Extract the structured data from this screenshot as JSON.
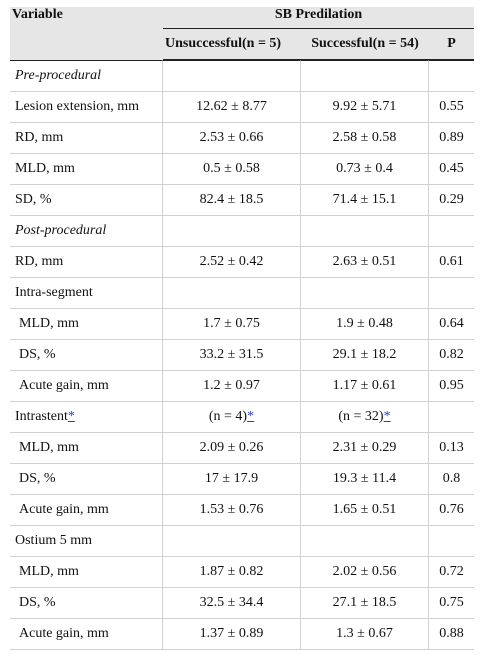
{
  "header": {
    "variable": "Variable",
    "group": "SB Predilation",
    "col1": "Unsuccessful(n = 5)",
    "col2": "Successful(n = 54)",
    "col3": "P"
  },
  "rows": [
    {
      "label": "Pre-procedural",
      "section": true
    },
    {
      "label": "Lesion extension, mm",
      "v1": "12.62 ± 8.77",
      "v2": "9.92 ± 5.71",
      "p": "0.55"
    },
    {
      "label": "RD, mm",
      "v1": "2.53 ± 0.66",
      "v2": "2.58 ± 0.58",
      "p": "0.89"
    },
    {
      "label": "MLD, mm",
      "v1": "0.5 ± 0.58",
      "v2": "0.73 ± 0.4",
      "p": "0.45"
    },
    {
      "label": "SD, %",
      "v1": "82.4 ± 18.5",
      "v2": "71.4 ± 15.1",
      "p": "0.29"
    },
    {
      "label": "Post-procedural",
      "section": true
    },
    {
      "label": "RD, mm",
      "v1": "2.52 ± 0.42",
      "v2": "2.63 ± 0.51",
      "p": "0.61"
    },
    {
      "label": "Intra-segment"
    },
    {
      "label": "MLD, mm",
      "v1": "1.7 ± 0.75",
      "v2": "1.9 ± 0.48",
      "p": "0.64",
      "indent": true
    },
    {
      "label": "DS, %",
      "v1": "33.2 ± 31.5",
      "v2": "29.1 ± 18.2",
      "p": "0.82",
      "indent": true
    },
    {
      "label": "Acute gain, mm",
      "v1": "1.2 ± 0.97",
      "v2": "1.17 ± 0.61",
      "p": "0.95",
      "indent": true
    },
    {
      "label": "Intrastent",
      "labelStar": "*",
      "v1": "(n = 4)",
      "v1Star": "*",
      "v2": "(n = 32)",
      "v2Star": "*"
    },
    {
      "label": "MLD, mm",
      "v1": "2.09 ± 0.26",
      "v2": "2.31 ± 0.29",
      "p": "0.13",
      "indent": true
    },
    {
      "label": "DS, %",
      "v1": "17 ± 17.9",
      "v2": "19.3 ± 11.4",
      "p": "0.8",
      "indent": true
    },
    {
      "label": "Acute gain, mm",
      "v1": "1.53 ± 0.76",
      "v2": "1.65 ± 0.51",
      "p": "0.76",
      "indent": true
    },
    {
      "label": "Ostium 5 mm"
    },
    {
      "label": "MLD, mm",
      "v1": "1.87 ± 0.82",
      "v2": "2.02 ± 0.56",
      "p": "0.72",
      "indent": true
    },
    {
      "label": "DS, %",
      "v1": "32.5 ± 34.4",
      "v2": "27.1 ± 18.5",
      "p": "0.75",
      "indent": true
    },
    {
      "label": "Acute gain, mm",
      "v1": "1.37 ± 0.89",
      "v2": "1.3 ± 0.67",
      "p": "0.88",
      "indent": true
    }
  ],
  "colors": {
    "header_bg": "#e6e6e6",
    "link": "#2a3ccf",
    "rule": "#222222",
    "grid": "#d0d0d0"
  }
}
